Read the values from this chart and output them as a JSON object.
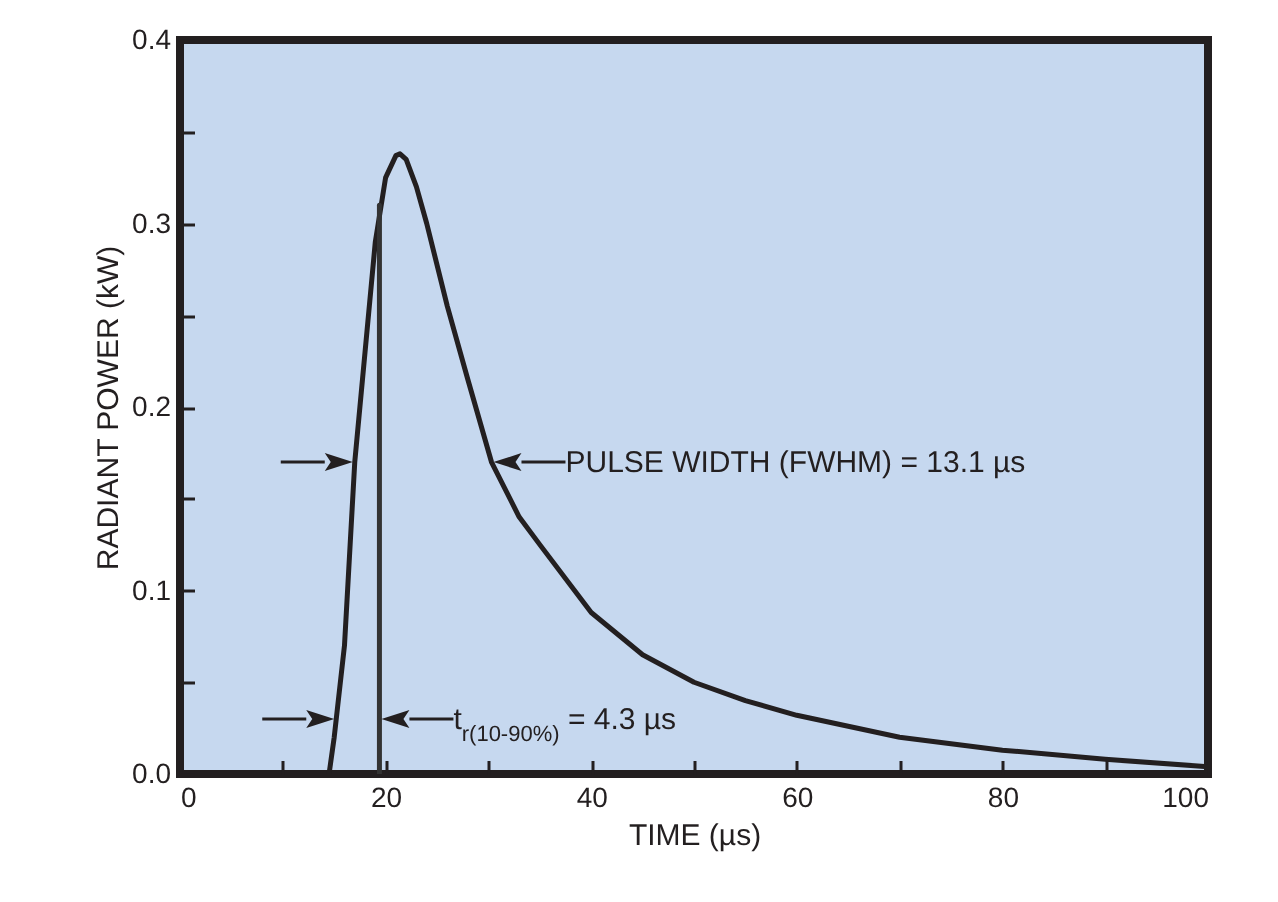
{
  "chart_data": {
    "type": "line",
    "xlabel": "TIME (µs)",
    "ylabel": "RADIANT POWER (kW)",
    "xlim": [
      0,
      100
    ],
    "xticks": [
      0,
      {
        "value": 10,
        "label": null
      },
      20,
      {
        "value": 30,
        "label": null
      },
      40,
      {
        "value": 50,
        "label": null
      },
      60,
      {
        "value": 70,
        "label": null
      },
      80,
      {
        "value": 90,
        "label": null
      },
      100
    ],
    "ylim": [
      0,
      0.4
    ],
    "yticks": [
      {
        "value": 0,
        "label": "0.0"
      },
      {
        "value": 0.05,
        "label": null
      },
      0.1,
      {
        "value": 0.15,
        "label": null
      },
      0.2,
      {
        "value": 0.25,
        "label": null
      },
      0.3,
      {
        "value": 0.35,
        "label": null
      },
      0.4
    ],
    "grid": false,
    "marker": "none",
    "line_style": "solid",
    "series": [
      {
        "color": "#231f20",
        "x": [
          14.5,
          15,
          16,
          17,
          18,
          19,
          20,
          21,
          21.4,
          22,
          23,
          24,
          26,
          28,
          30.3,
          33,
          35,
          40,
          45,
          50,
          55,
          60,
          70,
          80,
          90,
          100
        ],
        "values": [
          0,
          0.02,
          0.07,
          0.17,
          0.23,
          0.29,
          0.325,
          0.337,
          0.338,
          0.335,
          0.32,
          0.3,
          0.255,
          0.215,
          0.17,
          0.14,
          0.125,
          0.088,
          0.065,
          0.05,
          0.04,
          0.032,
          0.02,
          0.013,
          0.008,
          0.004
        ]
      },
      {
        "color": "#333333",
        "x": [
          19.4,
          19.4
        ],
        "values": [
          0,
          0.31
        ]
      }
    ],
    "annotations": [
      {
        "text": "PULSE WIDTH (FWHM) = 13.1 µs",
        "x": 30.3,
        "y": 0.17
      },
      {
        "text": "t$_{r(10-90%)}$ = 4.3 µs",
        "x": 19.4,
        "y": 0.03
      }
    ]
  }
}
